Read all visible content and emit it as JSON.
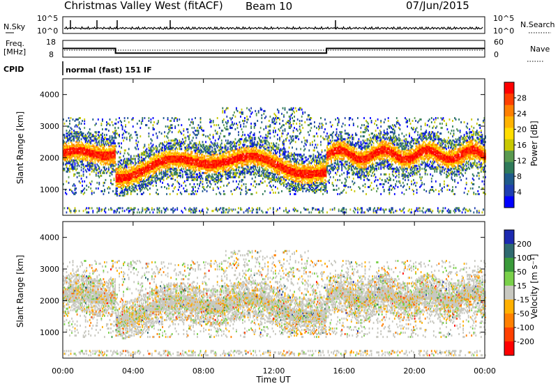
{
  "header": {
    "station": "Christmas Valley West (fitACF)",
    "beam": "Beam 10",
    "date": "07/Jun/2015"
  },
  "left_labels": {
    "nsky": "N.Sky",
    "freq": "Freq.",
    "freq_unit": "[MHz]",
    "cpid": "CPID"
  },
  "right_labels": {
    "nsearch": "N.Search",
    "nave": "Nave"
  },
  "cpid_text": "normal (fast) 151 IF",
  "colorbars": {
    "power": {
      "label": "Power [dB]",
      "ticks": [
        "28",
        "24",
        "20",
        "16",
        "12",
        "8",
        "4"
      ],
      "colors": [
        "#ff0000",
        "#ff4000",
        "#ff8000",
        "#ffb300",
        "#ffdd00",
        "#c8c800",
        "#5a9a50",
        "#2f7a5a",
        "#1f5a8a",
        "#1f3fb0",
        "#0000ff"
      ]
    },
    "velocity": {
      "label": "Velocity [m s⁻¹]",
      "ticks": [
        "200",
        "100",
        "50",
        "15",
        "-15",
        "-50",
        "-100",
        "-200"
      ],
      "colors": [
        "#1c2ab0",
        "#2f6a70",
        "#3a9a3a",
        "#7ad04a",
        "#c8c8c0",
        "#ffb000",
        "#ff8000",
        "#ff4000",
        "#ff0000"
      ]
    }
  },
  "top_panel_ticks": {
    "nsky_hi": "10^5",
    "nsky_lo": "10^0",
    "nsearch_hi": "10^5",
    "nsearch_lo": "10^0",
    "freq_hi": "18",
    "freq_lo": "8",
    "nave_hi": "60",
    "nave_lo": "0"
  },
  "chart_data": [
    {
      "type": "line",
      "title": "",
      "xlabel": "",
      "ylabel": "Freq. [MHz]",
      "x": [
        "00:00",
        "03:00",
        "03:00",
        "15:00",
        "15:00",
        "24:00"
      ],
      "series": [
        {
          "values": [
            13.2,
            13.2,
            10.4,
            10.4,
            13.2,
            13.2
          ]
        }
      ],
      "ylim": [
        8,
        18
      ]
    },
    {
      "type": "heatmap",
      "title": "",
      "xlabel": "Time UT",
      "ylabel": "Slant Range [km]",
      "xlim": [
        "00:00",
        "24:00"
      ],
      "x_ticks": [
        "00:00",
        "04:00",
        "08:00",
        "12:00",
        "16:00",
        "20:00",
        "00:00"
      ],
      "ylim": [
        180,
        4500
      ],
      "y_ticks": [
        "1000",
        "2000",
        "3000",
        "4000"
      ],
      "colorbar": "Power [dB]",
      "clim": [
        0,
        30
      ],
      "grid": false
    },
    {
      "type": "heatmap",
      "title": "",
      "xlabel": "Time UT",
      "ylabel": "Slant Range [km]",
      "xlim": [
        "00:00",
        "24:00"
      ],
      "x_ticks": [
        "00:00",
        "04:00",
        "08:00",
        "12:00",
        "16:00",
        "20:00",
        "00:00"
      ],
      "ylim": [
        180,
        4500
      ],
      "y_ticks": [
        "1000",
        "2000",
        "3000",
        "4000"
      ],
      "colorbar": "Velocity [m s⁻¹]",
      "clim": [
        -250,
        250
      ],
      "grid": false
    }
  ]
}
